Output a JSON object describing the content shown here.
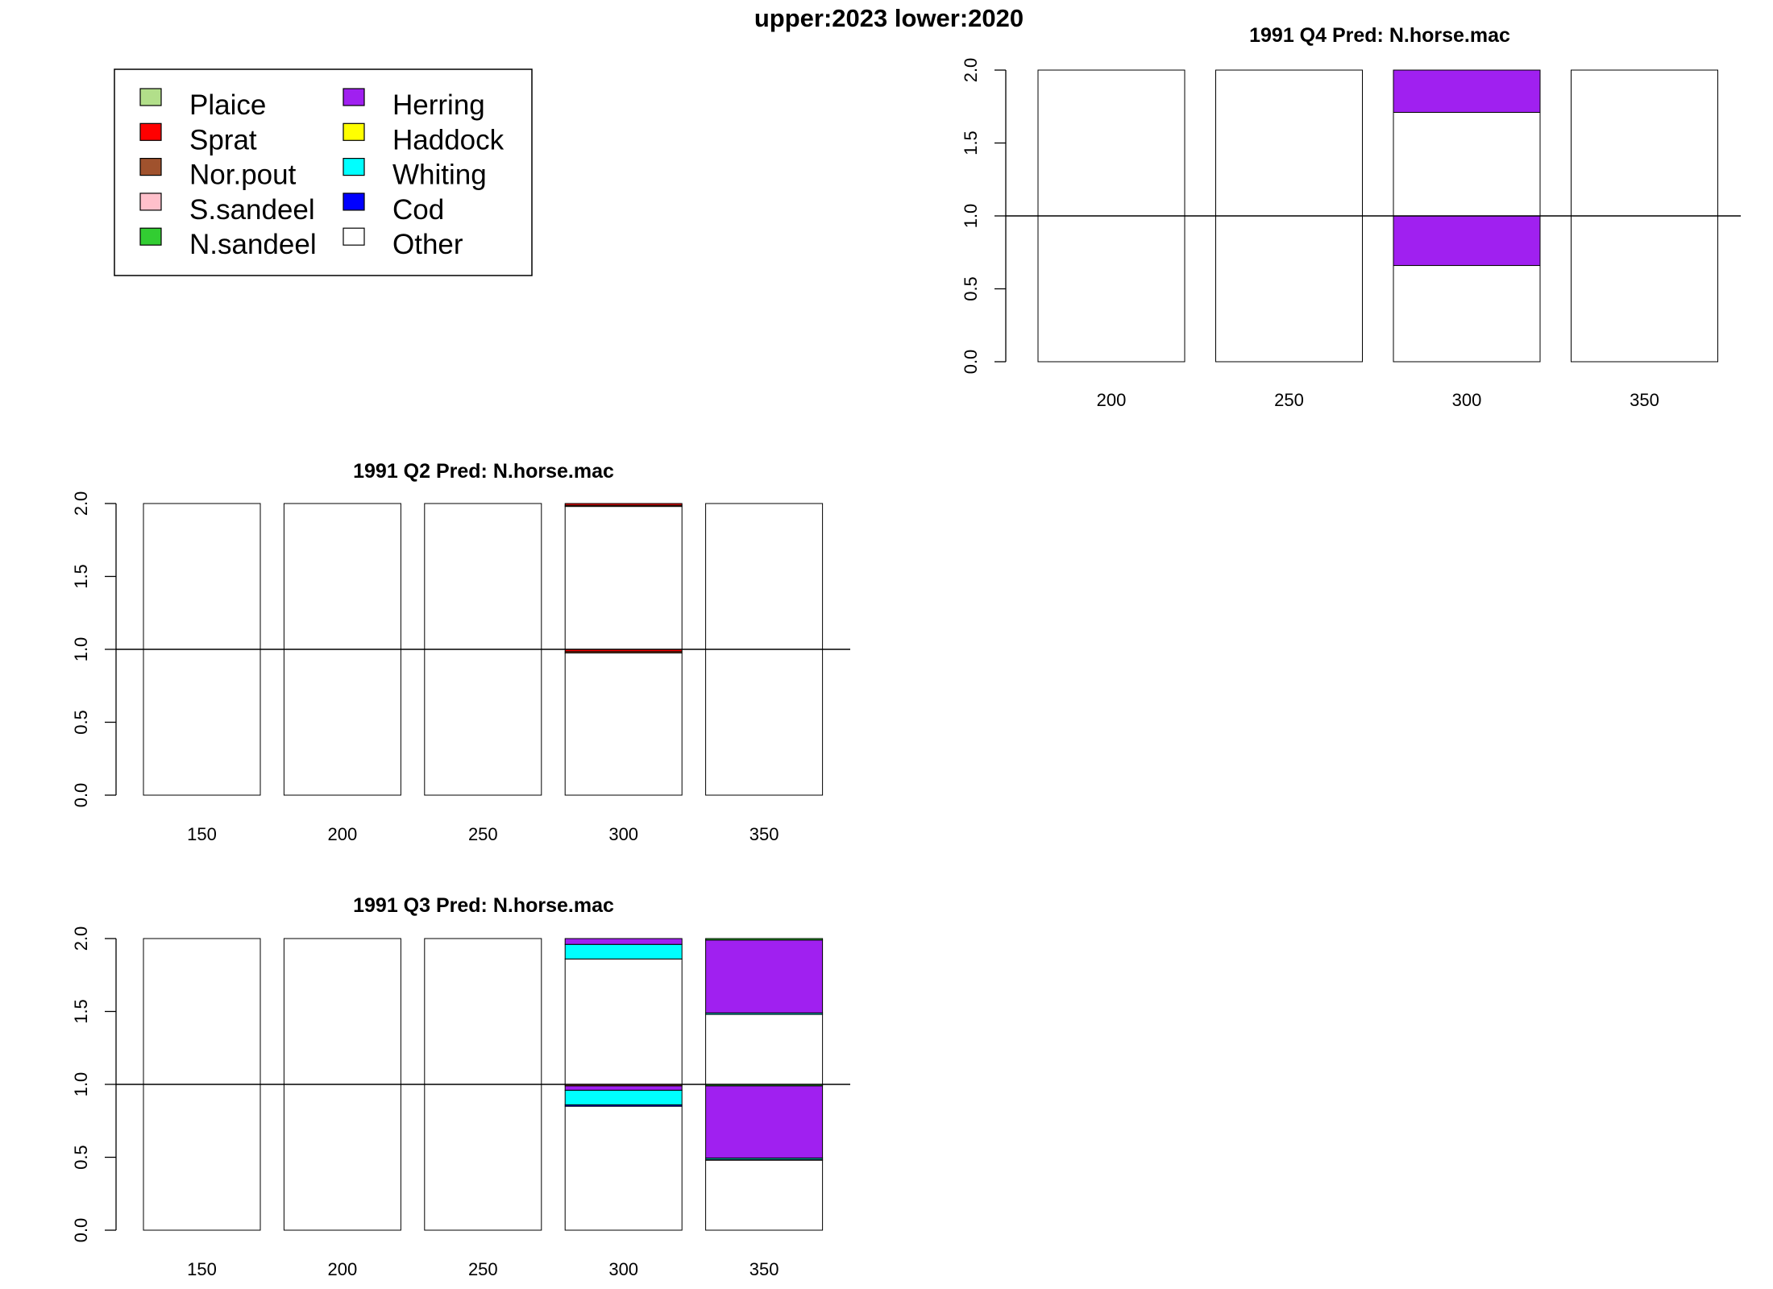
{
  "figure_title": "upper:2023  lower:2020",
  "legend": {
    "items": [
      {
        "name": "Plaice",
        "color": "#b2df8a"
      },
      {
        "name": "Sprat",
        "color": "#ff0000"
      },
      {
        "name": "Nor.pout",
        "color": "#a0522d"
      },
      {
        "name": "S.sandeel",
        "color": "#ffc0cb"
      },
      {
        "name": "N.sandeel",
        "color": "#32cd32"
      },
      {
        "name": "Herring",
        "color": "#a020f0"
      },
      {
        "name": "Haddock",
        "color": "#ffff00"
      },
      {
        "name": "Whiting",
        "color": "#00ffff"
      },
      {
        "name": "Cod",
        "color": "#0000ff"
      },
      {
        "name": "Other",
        "color": "#ffffff"
      }
    ]
  },
  "chart_data": [
    {
      "type": "bar",
      "stacked": true,
      "title": "1991 Q4  Pred: N.horse.mac",
      "categories": [
        "200",
        "250",
        "300",
        "350"
      ],
      "ylim": [
        0,
        2
      ],
      "yticks": [
        "0.0",
        "0.5",
        "1.0",
        "1.5",
        "2.0"
      ],
      "reference_line": 1.0,
      "lower": [
        {
          "Other": 1.0
        },
        {
          "Other": 1.0
        },
        {
          "Other": 0.66,
          "Herring": 0.34
        },
        {
          "Other": 1.0
        }
      ],
      "upper": [
        {
          "Other": 1.0
        },
        {
          "Other": 1.0
        },
        {
          "Other": 0.71,
          "Herring": 0.29
        },
        {
          "Other": 1.0
        }
      ]
    },
    {
      "type": "bar",
      "stacked": true,
      "title": "1991 Q2  Pred: N.horse.mac",
      "categories": [
        "150",
        "200",
        "250",
        "300",
        "350"
      ],
      "ylim": [
        0,
        2
      ],
      "yticks": [
        "0.0",
        "0.5",
        "1.0",
        "1.5",
        "2.0"
      ],
      "reference_line": 1.0,
      "lower": [
        {
          "Other": 1.0
        },
        {
          "Other": 1.0
        },
        {
          "Other": 1.0
        },
        {
          "Other": 0.975,
          "Sprat": 0.015,
          "Nor.pout": 0.01
        },
        {
          "Other": 1.0
        }
      ],
      "upper": [
        {
          "Other": 1.0
        },
        {
          "Other": 1.0
        },
        {
          "Other": 1.0
        },
        {
          "Other": 0.98,
          "Sprat": 0.012,
          "Nor.pout": 0.008
        },
        {
          "Other": 1.0
        }
      ]
    },
    {
      "type": "bar",
      "stacked": true,
      "title": "1991 Q3  Pred: N.horse.mac",
      "categories": [
        "150",
        "200",
        "250",
        "300",
        "350"
      ],
      "ylim": [
        0,
        2
      ],
      "yticks": [
        "0.0",
        "0.5",
        "1.0",
        "1.5",
        "2.0"
      ],
      "reference_line": 1.0,
      "lower": [
        {
          "Other": 1.0
        },
        {
          "Other": 1.0
        },
        {
          "Other": 1.0
        },
        {
          "Other": 0.85,
          "Whiting": 0.1,
          "Cod": 0.01,
          "Herring": 0.03,
          "Nor.pout": 0.01
        },
        {
          "Other": 0.48,
          "Whiting": 0.01,
          "Cod": 0.005,
          "Herring": 0.495,
          "N.sandeel": 0.01
        }
      ],
      "upper": [
        {
          "Other": 1.0
        },
        {
          "Other": 1.0
        },
        {
          "Other": 1.0
        },
        {
          "Other": 0.86,
          "Whiting": 0.1,
          "Herring": 0.04
        },
        {
          "Other": 0.48,
          "Whiting": 0.01,
          "Herring": 0.5,
          "N.sandeel": 0.01
        }
      ]
    }
  ]
}
